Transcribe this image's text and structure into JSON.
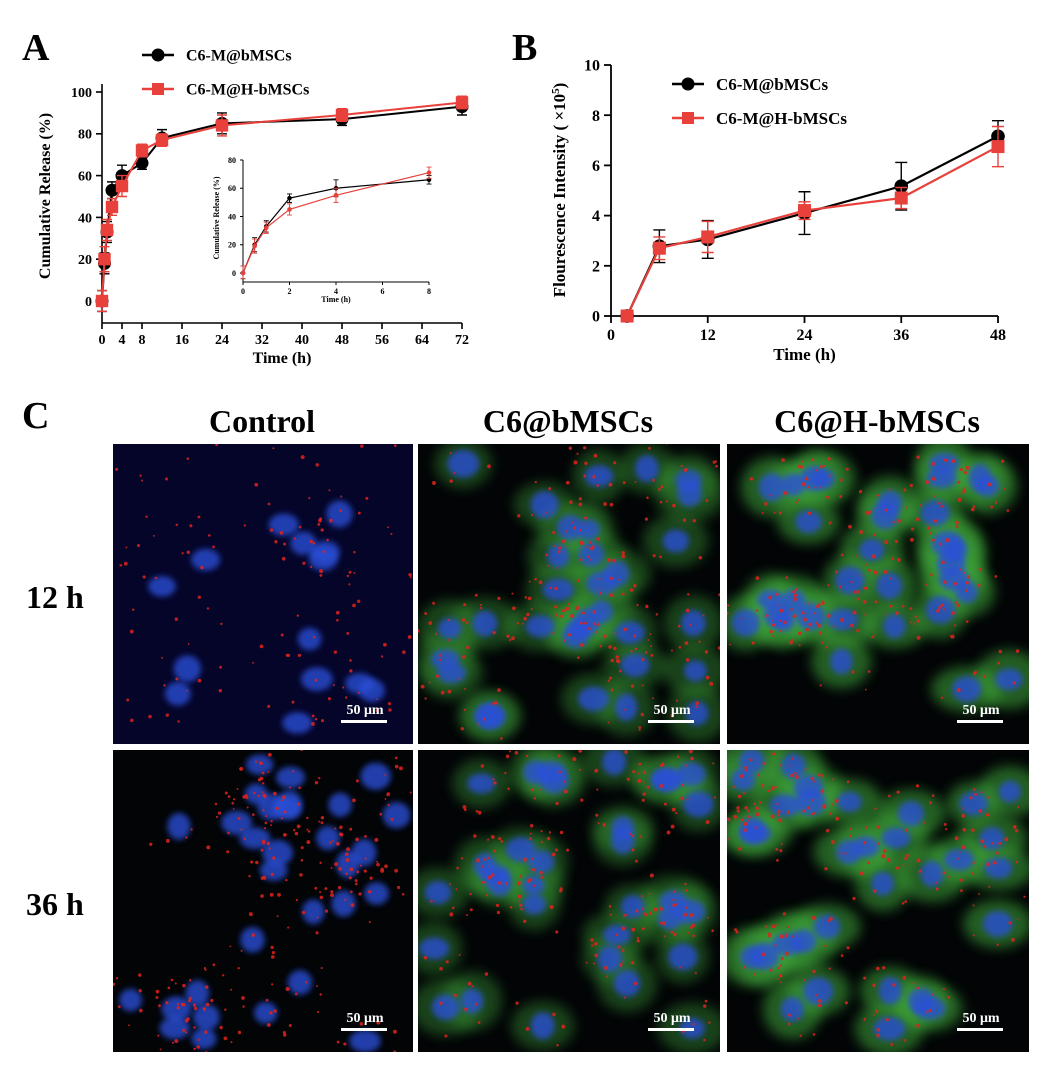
{
  "panels": {
    "A": "A",
    "B": "B",
    "C": "C"
  },
  "colors": {
    "series1": "#000000",
    "series2": "#e8413c",
    "nucleus": "#2a4fd8",
    "membrane": "#3fa83a",
    "drug": "#e0221c",
    "scale_bar": "#ffffff"
  },
  "chart_data": [
    {
      "id": "A-main",
      "type": "line",
      "title": "",
      "xlabel": "Time (h)",
      "ylabel": "Cumulative Release (%)",
      "xlim": [
        0,
        72
      ],
      "ylim": [
        0,
        100
      ],
      "xticks": [
        0,
        4,
        8,
        16,
        24,
        32,
        40,
        48,
        56,
        64,
        72
      ],
      "yticks": [
        0,
        20,
        40,
        60,
        80,
        100
      ],
      "legend": "top-left",
      "grid": false,
      "series": [
        {
          "name": "C6-M@bMSCs",
          "marker": "circle",
          "color": "#000000",
          "x": [
            0,
            0.5,
            1,
            2,
            4,
            8,
            12,
            24,
            48,
            72
          ],
          "y": [
            0,
            18,
            33,
            53,
            60,
            66,
            78,
            85,
            87,
            93
          ],
          "err": [
            5,
            5,
            5,
            4,
            5,
            3,
            4,
            5,
            3,
            4
          ]
        },
        {
          "name": "C6-M@H-bMSCs",
          "marker": "square",
          "color": "#e8413c",
          "x": [
            0,
            0.5,
            1,
            2,
            4,
            8,
            12,
            24,
            48,
            72
          ],
          "y": [
            0,
            20,
            34,
            45,
            55,
            72,
            77,
            84,
            89,
            95
          ],
          "err": [
            5,
            6,
            5,
            4,
            5,
            3,
            3,
            5,
            3,
            3
          ]
        }
      ]
    },
    {
      "id": "A-inset",
      "type": "line",
      "xlabel": "Time (h)",
      "ylabel": "Cumulative Release (%)",
      "xlim": [
        0,
        8
      ],
      "ylim": [
        0,
        80
      ],
      "xticks": [
        0,
        2,
        4,
        6,
        8
      ],
      "yticks": [
        0,
        20,
        40,
        60,
        80
      ],
      "series": [
        {
          "name": "C6-M@bMSCs",
          "color": "#000000",
          "x": [
            0,
            0.5,
            1,
            2,
            4,
            8
          ],
          "y": [
            0,
            20,
            33,
            53,
            60,
            66
          ],
          "err": [
            5,
            5,
            4,
            3,
            6,
            3
          ]
        },
        {
          "name": "C6-M@H-bMSCs",
          "color": "#e8413c",
          "x": [
            0,
            0.5,
            1,
            2,
            4,
            8
          ],
          "y": [
            0,
            19,
            32,
            45,
            55,
            71
          ],
          "err": [
            5,
            5,
            4,
            4,
            5,
            4
          ]
        }
      ]
    },
    {
      "id": "B",
      "type": "line",
      "title": "",
      "xlabel": "Time (h)",
      "ylabel_main": "Flourescence Intensity",
      "ylabel_unit_open": "( ×10",
      "ylabel_unit_exp": "5",
      "ylabel_unit_close": ")",
      "xlim": [
        0,
        48
      ],
      "ylim": [
        0,
        10
      ],
      "xticks": [
        0,
        12,
        24,
        36,
        48
      ],
      "yticks": [
        0,
        2,
        4,
        6,
        8,
        10
      ],
      "legend": "top-left",
      "grid": false,
      "series": [
        {
          "name": "C6-M@bMSCs",
          "marker": "circle",
          "color": "#000000",
          "x": [
            2,
            6,
            12,
            24,
            36,
            48
          ],
          "y": [
            0,
            2.78,
            3.05,
            4.1,
            5.17,
            7.16
          ],
          "err": [
            0.1,
            0.65,
            0.75,
            0.85,
            0.95,
            0.62
          ]
        },
        {
          "name": "C6-M@H-bMSCs",
          "marker": "square",
          "color": "#e8413c",
          "x": [
            2,
            6,
            12,
            24,
            36,
            48
          ],
          "y": [
            0,
            2.7,
            3.15,
            4.2,
            4.7,
            6.75
          ],
          "err": [
            0.1,
            0.45,
            0.62,
            0.35,
            0.42,
            0.8
          ]
        }
      ]
    }
  ],
  "micrographs": {
    "columns": [
      "Control",
      "C6@bMSCs",
      "C6@H-bMSCs"
    ],
    "rows": [
      "12 h",
      "36 h"
    ],
    "scale_bar": "50 μm"
  }
}
